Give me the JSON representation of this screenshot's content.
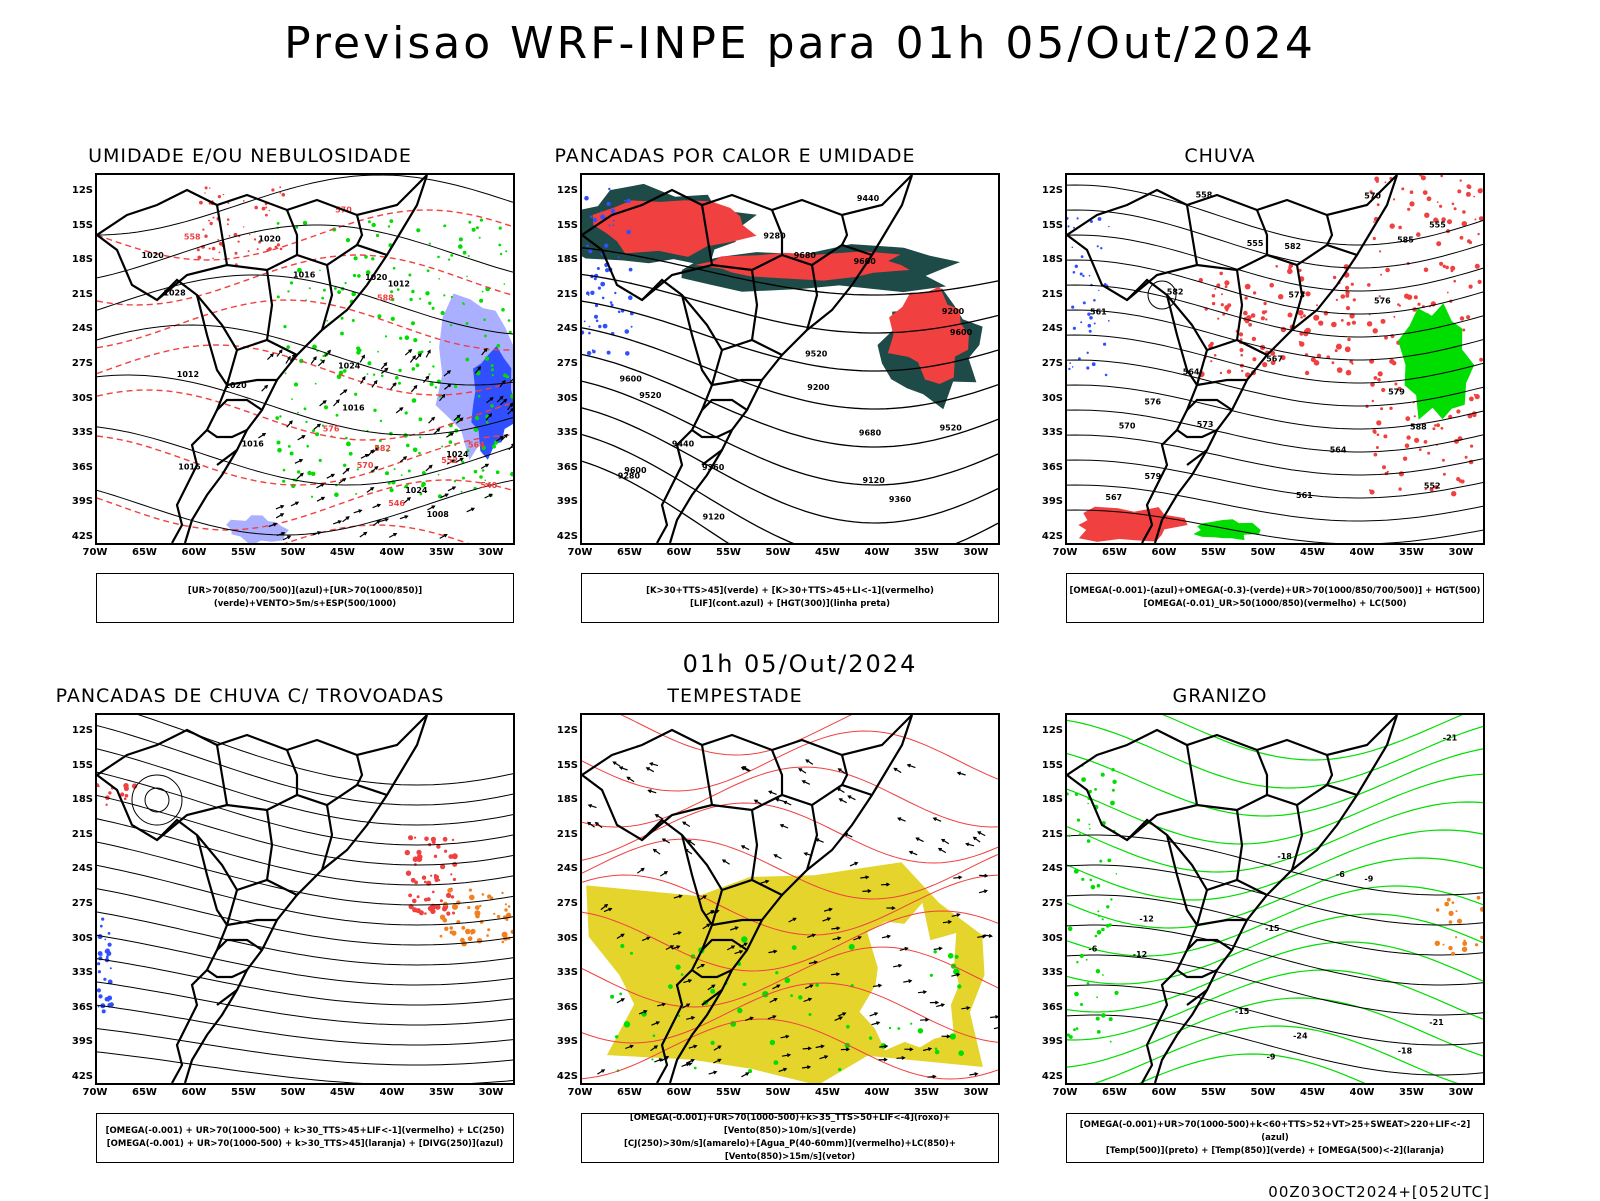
{
  "title": "Previsao WRF-INPE  para 01h 05/Out/2024",
  "date_label": "01h 05/Out/2024",
  "stamp": "00Z03OCT2024+[052UTC]",
  "lat_ticks": [
    "12S",
    "15S",
    "18S",
    "21S",
    "24S",
    "27S",
    "30S",
    "33S",
    "36S",
    "39S",
    "42S"
  ],
  "lon_ticks": [
    "70W",
    "65W",
    "60W",
    "55W",
    "50W",
    "45W",
    "40W",
    "35W",
    "30W"
  ],
  "colors": {
    "red": "#f04040",
    "green": "#00dd00",
    "blue": "#3050ff",
    "lightblue": "#aab0ff",
    "darkteal": "#1e4a48",
    "yellow": "#e5d42c",
    "orange": "#f08020",
    "contour": "#000000"
  },
  "panels": [
    {
      "id": "umidade",
      "title": "UMIDADE E/OU NEBULOSIDADE",
      "legend": [
        "[UR>70(850/700/500)](azul)+[UR>70(1000/850)](verde)+VENTO>5m/s+ESP(500/1000)"
      ],
      "contour_labels": [
        "1008",
        "1012",
        "1016",
        "1020",
        "1024",
        "1028",
        "1016",
        "1020",
        "1012",
        "1016",
        "1020",
        "1024",
        "1016",
        "1020",
        "1024"
      ],
      "red_labels": [
        "552",
        "564",
        "576",
        "570",
        "582",
        "588",
        "546",
        "540",
        "558",
        "570"
      ]
    },
    {
      "id": "pancadas-calor",
      "title": "PANCADAS POR CALOR E UMIDADE",
      "legend": [
        "[K>30+TTS>45](verde) + [K>30+TTS>45+LI<-1](vermelho)",
        "[LIF](cont.azul) + [HGT(300)](linha preta)"
      ],
      "contour_labels": [
        "9680",
        "9600",
        "9680",
        "9600",
        "9520",
        "9600",
        "9520",
        "9440",
        "9360",
        "9280",
        "9200",
        "9120",
        "9600",
        "9520",
        "9440",
        "9360",
        "9280",
        "9200",
        "9120"
      ]
    },
    {
      "id": "chuva",
      "title": "CHUVA",
      "legend": [
        "[OMEGA(-0.001)-(azul)+OMEGA(-0.3)-(verde)+UR>70(1000/850/700/500)] + HGT(500)",
        "[OMEGA(-0.01)_UR>50(1000/850)(vermelho) + LC(500)"
      ],
      "contour_labels": [
        "588",
        "585",
        "582",
        "579",
        "576",
        "573",
        "570",
        "567",
        "564",
        "561",
        "558",
        "555",
        "552",
        "582",
        "579",
        "576",
        "573",
        "570",
        "567",
        "564",
        "561",
        "555"
      ]
    },
    {
      "id": "trovoadas",
      "title": "PANCADAS DE CHUVA C/ TROVOADAS",
      "legend": [
        "[OMEGA(-0.001) + UR>70(1000-500) + k>30_TTS>45+LIF<-1](vermelho) + LC(250)",
        "[OMEGA(-0.001) + UR>70(1000-500) + k>30_TTS>45](laranja) + [DIVG(250)](azul)"
      ]
    },
    {
      "id": "tempestade",
      "title": "TEMPESTADE",
      "legend": [
        "[OMEGA(-0.001)+UR>70(1000-500)+k>35_TTS>50+LIF<-4](roxo)+[Vento(850)>10m/s](verde)",
        "[CJ(250)>30m/s](amarelo)+[Agua_P(40-60mm)](vermelho)+LC(850)+[Vento(850)>15m/s](vetor)"
      ]
    },
    {
      "id": "granizo",
      "title": "GRANIZO",
      "legend": [
        "[OMEGA(-0.001)+UR>70(1000-500)+k<60+TTS>52+VT>25+SWEAT>220+LIF<-2](azul)",
        "[Temp(500)](preto) + [Temp(850)](verde) + [OMEGA(500)<-2](laranja)"
      ],
      "contour_labels": [
        "-6",
        "-9",
        "-12",
        "-15",
        "-18",
        "-21",
        "-24",
        "-15",
        "-12",
        "-9",
        "-6",
        "-21",
        "-18"
      ]
    }
  ]
}
